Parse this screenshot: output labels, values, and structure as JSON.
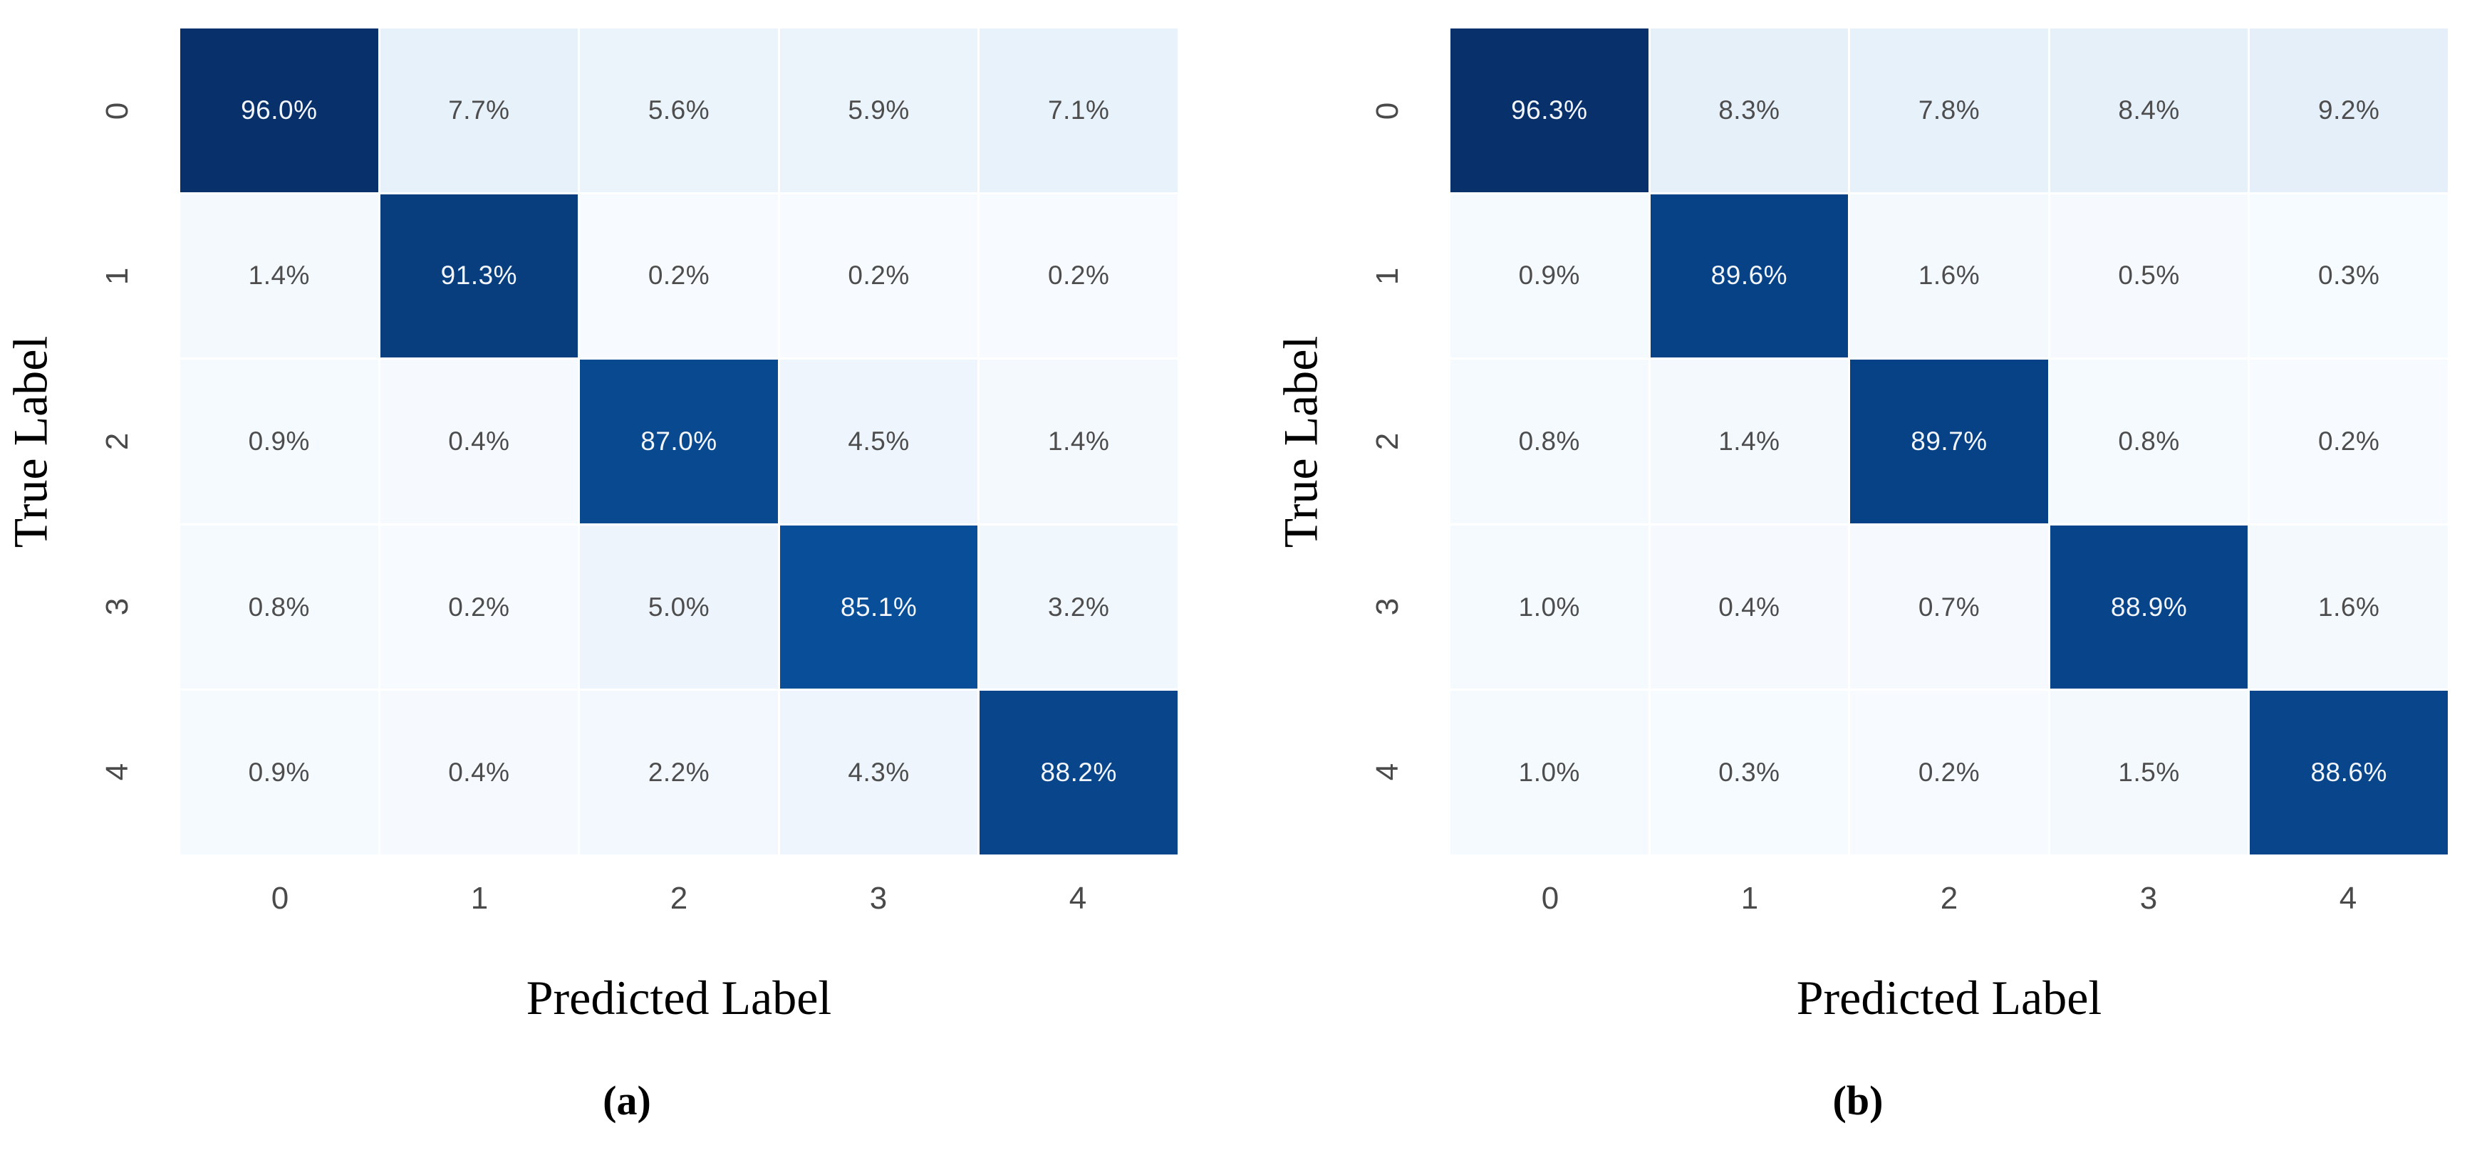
{
  "chart_data": [
    {
      "type": "heatmap",
      "id": "a",
      "caption": "(a)",
      "xlabel": "Predicted Label",
      "ylabel": "True Label",
      "x_tick_labels": [
        "0",
        "1",
        "2",
        "3",
        "4"
      ],
      "y_tick_labels": [
        "0",
        "1",
        "2",
        "3",
        "4"
      ],
      "unit": "%",
      "rows": [
        [
          96.0,
          7.7,
          5.6,
          5.9,
          7.1
        ],
        [
          1.4,
          91.3,
          0.2,
          0.2,
          0.2
        ],
        [
          0.9,
          0.4,
          87.0,
          4.5,
          1.4
        ],
        [
          0.8,
          0.2,
          5.0,
          85.1,
          3.2
        ],
        [
          0.9,
          0.4,
          2.2,
          4.3,
          88.2
        ]
      ],
      "cell_labels": [
        [
          "96.0%",
          "7.7%",
          "5.6%",
          "5.9%",
          "7.1%"
        ],
        [
          "1.4%",
          "91.3%",
          "0.2%",
          "0.2%",
          "0.2%"
        ],
        [
          "0.9%",
          "0.4%",
          "87.0%",
          "4.5%",
          "1.4%"
        ],
        [
          "0.8%",
          "0.2%",
          "5.0%",
          "85.1%",
          "3.2%"
        ],
        [
          "0.9%",
          "0.4%",
          "2.2%",
          "4.3%",
          "88.2%"
        ]
      ],
      "color_scale": {
        "vmin": 0,
        "vmax": 96.0
      },
      "legend": "none",
      "grid": false
    },
    {
      "type": "heatmap",
      "id": "b",
      "caption": "(b)",
      "xlabel": "Predicted Label",
      "ylabel": "True Label",
      "x_tick_labels": [
        "0",
        "1",
        "2",
        "3",
        "4"
      ],
      "y_tick_labels": [
        "0",
        "1",
        "2",
        "3",
        "4"
      ],
      "unit": "%",
      "rows": [
        [
          96.3,
          8.3,
          7.8,
          8.4,
          9.2
        ],
        [
          0.9,
          89.6,
          1.6,
          0.5,
          0.3
        ],
        [
          0.8,
          1.4,
          89.7,
          0.8,
          0.2
        ],
        [
          1.0,
          0.4,
          0.7,
          88.9,
          1.6
        ],
        [
          1.0,
          0.3,
          0.2,
          1.5,
          88.6
        ]
      ],
      "cell_labels": [
        [
          "96.3%",
          "8.3%",
          "7.8%",
          "8.4%",
          "9.2%"
        ],
        [
          "0.9%",
          "89.6%",
          "1.6%",
          "0.5%",
          "0.3%"
        ],
        [
          "0.8%",
          "1.4%",
          "89.7%",
          "0.8%",
          "0.2%"
        ],
        [
          "1.0%",
          "0.4%",
          "0.7%",
          "88.9%",
          "1.6%"
        ],
        [
          "1.0%",
          "0.3%",
          "0.2%",
          "1.5%",
          "88.6%"
        ]
      ],
      "color_scale": {
        "vmin": 0,
        "vmax": 96.3
      },
      "legend": "none",
      "grid": false
    }
  ],
  "style": {
    "colormap_name": "Blues",
    "colormap_stops": [
      [
        0.0,
        "#f7fbff"
      ],
      [
        0.125,
        "#deebf7"
      ],
      [
        0.25,
        "#c6dbef"
      ],
      [
        0.375,
        "#9ecae1"
      ],
      [
        0.5,
        "#6baed6"
      ],
      [
        0.625,
        "#4292c6"
      ],
      [
        0.75,
        "#2171b5"
      ],
      [
        0.875,
        "#08519c"
      ],
      [
        1.0,
        "#08306b"
      ]
    ],
    "diagonal_dark_color": "#08306b",
    "light_cell_text_color": "#4d4d4d",
    "dark_cell_text_color": "#f2f6fb",
    "text_switch_threshold": 50,
    "background": "#ffffff"
  }
}
